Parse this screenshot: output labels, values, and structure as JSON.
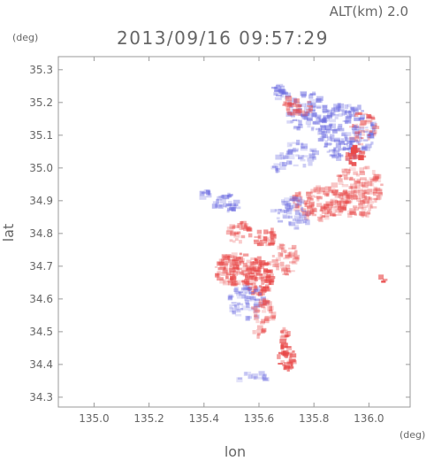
{
  "header": {
    "alt_label": "ALT(km) 2.0",
    "timestamp": "2013/09/16 09:57:29",
    "y_unit": "(deg)",
    "x_unit": "(deg)"
  },
  "chart_data": {
    "type": "heatmap",
    "xlabel": "lon",
    "ylabel": "lat",
    "xlim": [
      134.87,
      136.15
    ],
    "ylim": [
      34.27,
      35.34
    ],
    "x_ticks": [
      135.0,
      135.2,
      135.4,
      135.6,
      135.8,
      136.0
    ],
    "x_tick_labels": [
      "135.0",
      "135.2",
      "135.4",
      "135.6",
      "135.8",
      "136.0"
    ],
    "y_ticks": [
      34.3,
      34.4,
      34.5,
      34.6,
      34.7,
      34.8,
      34.9,
      35.0,
      35.1,
      35.2,
      35.3
    ],
    "y_tick_labels": [
      "34.3",
      "34.4",
      "34.5",
      "34.6",
      "34.7",
      "34.8",
      "34.9",
      "35.0",
      "35.1",
      "35.2",
      "35.3"
    ],
    "colors": {
      "positive": "#e84848",
      "negative": "#6a6ae0"
    },
    "grid": false,
    "regions": [
      {
        "lon": 135.92,
        "lat": 35.11,
        "rlon": 0.1,
        "rlat": 0.09,
        "sign": -1,
        "intensity": 0.45,
        "count": 160
      },
      {
        "lon": 135.78,
        "lat": 35.17,
        "rlon": 0.08,
        "rlat": 0.06,
        "sign": -1,
        "intensity": 0.4,
        "count": 90
      },
      {
        "lon": 135.68,
        "lat": 35.23,
        "rlon": 0.03,
        "rlat": 0.03,
        "sign": -1,
        "intensity": 0.45,
        "count": 22
      },
      {
        "lon": 135.74,
        "lat": 35.19,
        "rlon": 0.06,
        "rlat": 0.03,
        "sign": 1,
        "intensity": 0.45,
        "count": 28
      },
      {
        "lon": 135.98,
        "lat": 35.12,
        "rlon": 0.05,
        "rlat": 0.05,
        "sign": 1,
        "intensity": 0.4,
        "count": 35
      },
      {
        "lon": 135.95,
        "lat": 35.04,
        "rlon": 0.03,
        "rlat": 0.03,
        "sign": 1,
        "intensity": 0.8,
        "count": 25
      },
      {
        "lon": 135.96,
        "lat": 34.93,
        "rlon": 0.09,
        "rlat": 0.08,
        "sign": 1,
        "intensity": 0.35,
        "count": 150
      },
      {
        "lon": 135.82,
        "lat": 34.89,
        "rlon": 0.1,
        "rlat": 0.05,
        "sign": 1,
        "intensity": 0.4,
        "count": 110
      },
      {
        "lon": 135.72,
        "lat": 34.86,
        "rlon": 0.07,
        "rlat": 0.05,
        "sign": -1,
        "intensity": 0.35,
        "count": 55
      },
      {
        "lon": 135.74,
        "lat": 35.04,
        "rlon": 0.07,
        "rlat": 0.04,
        "sign": -1,
        "intensity": 0.35,
        "count": 40
      },
      {
        "lon": 135.48,
        "lat": 34.89,
        "rlon": 0.05,
        "rlat": 0.03,
        "sign": -1,
        "intensity": 0.45,
        "count": 30
      },
      {
        "lon": 135.53,
        "lat": 34.8,
        "rlon": 0.04,
        "rlat": 0.04,
        "sign": 1,
        "intensity": 0.45,
        "count": 30
      },
      {
        "lon": 135.52,
        "lat": 34.69,
        "rlon": 0.08,
        "rlat": 0.05,
        "sign": 1,
        "intensity": 0.45,
        "count": 120
      },
      {
        "lon": 135.6,
        "lat": 34.67,
        "rlon": 0.05,
        "rlat": 0.06,
        "sign": 1,
        "intensity": 0.55,
        "count": 90
      },
      {
        "lon": 135.7,
        "lat": 34.72,
        "rlon": 0.05,
        "rlat": 0.05,
        "sign": 1,
        "intensity": 0.35,
        "count": 45
      },
      {
        "lon": 135.62,
        "lat": 34.79,
        "rlon": 0.04,
        "rlat": 0.03,
        "sign": 1,
        "intensity": 0.5,
        "count": 30
      },
      {
        "lon": 135.56,
        "lat": 34.59,
        "rlon": 0.07,
        "rlat": 0.05,
        "sign": -1,
        "intensity": 0.35,
        "count": 70
      },
      {
        "lon": 135.62,
        "lat": 34.56,
        "rlon": 0.04,
        "rlat": 0.04,
        "sign": 1,
        "intensity": 0.35,
        "count": 35
      },
      {
        "lon": 135.7,
        "lat": 34.42,
        "rlon": 0.03,
        "rlat": 0.04,
        "sign": 1,
        "intensity": 0.65,
        "count": 35
      },
      {
        "lon": 135.69,
        "lat": 34.49,
        "rlon": 0.02,
        "rlat": 0.02,
        "sign": 1,
        "intensity": 0.55,
        "count": 10
      },
      {
        "lon": 135.6,
        "lat": 34.5,
        "rlon": 0.02,
        "rlat": 0.02,
        "sign": 1,
        "intensity": 0.45,
        "count": 8
      },
      {
        "lon": 135.58,
        "lat": 34.36,
        "rlon": 0.06,
        "rlat": 0.015,
        "sign": -1,
        "intensity": 0.3,
        "count": 15
      },
      {
        "lon": 135.4,
        "lat": 34.92,
        "rlon": 0.02,
        "rlat": 0.02,
        "sign": -1,
        "intensity": 0.45,
        "count": 8
      },
      {
        "lon": 136.05,
        "lat": 34.66,
        "rlon": 0.01,
        "rlat": 0.01,
        "sign": 1,
        "intensity": 0.7,
        "count": 3
      },
      {
        "lon": 135.67,
        "lat": 35.0,
        "rlon": 0.02,
        "rlat": 0.02,
        "sign": -1,
        "intensity": 0.4,
        "count": 8
      }
    ]
  }
}
